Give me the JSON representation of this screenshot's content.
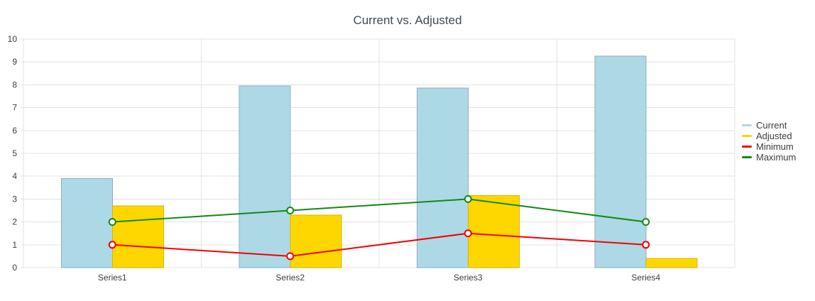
{
  "chart_data": {
    "type": "bar",
    "title": "Current vs. Adjusted",
    "categories": [
      "Series1",
      "Series2",
      "Series3",
      "Series4"
    ],
    "series": [
      {
        "name": "Current",
        "kind": "bar",
        "values": [
          3.9,
          7.95,
          7.85,
          9.25
        ],
        "fill": "#add8e6",
        "stroke": "#8aafc0"
      },
      {
        "name": "Adjusted",
        "kind": "bar",
        "values": [
          2.7,
          2.3,
          3.15,
          0.4
        ],
        "fill": "#ffd700",
        "stroke": "#d9b300"
      },
      {
        "name": "Minimum",
        "kind": "line",
        "values": [
          1,
          0.5,
          1.5,
          1
        ],
        "color": "#f40000",
        "marker_fill": "#ffffff"
      },
      {
        "name": "Maximum",
        "kind": "line",
        "values": [
          2,
          2.5,
          3,
          2
        ],
        "color": "#118a11",
        "marker_fill": "#ffffff"
      }
    ],
    "ylim": [
      0,
      10
    ],
    "ytick_labels": [
      "0",
      "1",
      "2",
      "3",
      "4",
      "5",
      "6",
      "7",
      "8",
      "9",
      "10"
    ],
    "grid": true,
    "legend_position": "right",
    "colors": {
      "grid": "#e3e3e3",
      "axis_text": "#3d3d3d",
      "title": "#404a59",
      "background": "#ffffff"
    }
  }
}
